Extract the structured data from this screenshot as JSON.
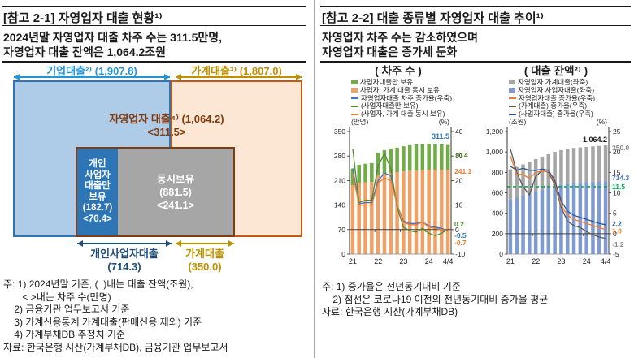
{
  "colors": {
    "corp_fill": "#AECBE8",
    "corp_border": "#2E75B6",
    "corp_accent": "#2596D4",
    "hh_fill": "#FBE7D4",
    "hh_border": "#C55A11",
    "gold": "#BF9000",
    "self_brown": "#843C0C",
    "biz_dark_blue": "#2E75B6",
    "both_gray": "#A6A6A6",
    "navy": "#1F4E79",
    "rule": "#1a1a1a",
    "divider": "#aaaaaa"
  },
  "left_panel": {
    "title": "[참고 2-1] 자영업자 대출 현황¹⁾",
    "subtitle_line1": "2024년말 자영업자 대출 차주 수는 311.5만명,",
    "subtitle_line2": "자영업자 대출 잔액은 1,064.2조원",
    "diagram": {
      "corporate_label": "기업대출²⁾ (1,907.8)",
      "household_label": "가계대출³⁾ (1,807.0)",
      "self_employed_label": "자영업자 대출⁴⁾ (1,064.2)\n<311.5>",
      "only_business_box": "개인\n사업자\n대출만\n보유\n(182.7)\n<70.4>",
      "both_box": "동시보유\n(881.5)\n<241.1>",
      "bottom_business_label": "개인사업자대출\n(714.3)",
      "bottom_household_label": "가계대출\n(350.0)"
    },
    "notes": [
      "주: 1) 2024년말 기준, (  )내는 대출 잔액(조원),",
      "       < >내는 차주 수(만명)",
      "    2) 금융기관 업무보고서 기준",
      "    3) 가계신용통계 가계대출(판매신용 제외) 기준",
      "    4) 가계부채DB 추정치 기준",
      "자료: 한국은행 시산(가계부채DB), 금융기관 업무보고서"
    ]
  },
  "right_panel": {
    "title": "[참고 2-2] 대출 종류별 자영업자 대출 추이¹⁾",
    "subtitle_line1": "자영업자 차주 수는 감소하였으며",
    "subtitle_line2": "자영업자 대출은 증가세 둔화",
    "notes": [
      "주: 1) 증가율은 전년동기대비 기준",
      "    2) 점선은 코로나19 이전의 전년동기대비 증가율 평균",
      "자료: 한국은행 시산(가계부채DB)"
    ]
  },
  "chart_data": [
    {
      "type": "bar",
      "subtype": "stacked bars + growth-rate lines on right axis",
      "title": "( 차주 수 )",
      "unit_left": "(만명)",
      "unit_right": "(%)",
      "categories": [
        "21Q1",
        "21Q2",
        "21Q3",
        "21Q4",
        "22Q1",
        "22Q2",
        "22Q3",
        "22Q4",
        "23Q1",
        "23Q2",
        "23Q3",
        "23Q4",
        "24Q1",
        "24Q2",
        "24Q3",
        "24Q4"
      ],
      "x_ticks": [
        {
          "i": 0,
          "label": "21"
        },
        {
          "i": 4,
          "label": "22"
        },
        {
          "i": 8,
          "label": "23"
        },
        {
          "i": 12,
          "label": "24"
        },
        {
          "i": 15,
          "label": "4/4"
        }
      ],
      "left_axis": {
        "min": 0,
        "max": 350,
        "ticks": [
          {
            "v": 0,
            "label": "0"
          },
          {
            "v": 70,
            "label": "70"
          },
          {
            "v": 140,
            "label": "140"
          },
          {
            "v": 210,
            "label": "210"
          },
          {
            "v": 280,
            "label": "280"
          },
          {
            "v": 350,
            "label": "350"
          }
        ]
      },
      "right_axis": {
        "min": -10,
        "max": 40,
        "ticks": [
          {
            "v": -10,
            "label": "-10"
          },
          {
            "v": 0,
            "label": "0"
          },
          {
            "v": 10,
            "label": "10"
          },
          {
            "v": 20,
            "label": "20"
          },
          {
            "v": 30,
            "label": "30"
          },
          {
            "v": 40,
            "label": "40"
          }
        ]
      },
      "legend": [
        {
          "type": "box",
          "color": "#70AD47",
          "label": "사업자대출만 보유"
        },
        {
          "type": "box",
          "color": "#F0A165",
          "label": "사업자, 가계 대출 동시 보유"
        },
        {
          "type": "line",
          "color": "#4472C4",
          "label": "자영업자대출 차주 증가율(우축)"
        },
        {
          "type": "line",
          "color": "#4E8A2F",
          "label": "(사업자대출만 보유)"
        },
        {
          "type": "line",
          "color": "#ED7D31",
          "label": "(사업자, 가계 대출 동시 보유)"
        }
      ],
      "bars": [
        {
          "name": "사업자, 가계 대출 동시 보유",
          "color": "#F0A165",
          "axis": "left",
          "values": [
            197,
            204,
            205,
            206,
            224,
            229,
            232,
            234,
            236,
            238,
            239,
            240,
            241,
            241,
            241,
            241.1
          ]
        },
        {
          "name": "사업자대출만 보유",
          "color": "#70AD47",
          "axis": "left",
          "values": [
            47,
            51,
            53,
            54,
            66,
            68,
            69,
            70,
            72,
            73,
            74,
            74,
            74,
            73,
            72,
            70.4
          ]
        }
      ],
      "lines": [
        {
          "name": "자영업자대출 차주 증가율(우축)",
          "color": "#4472C4",
          "axis": "right",
          "values": [
            25,
            10.5,
            11,
            11,
            20,
            23,
            22,
            10,
            3.5,
            2.5,
            2.5,
            3,
            1.5,
            1,
            0.5,
            -0.5
          ]
        },
        {
          "name": "(사업자대출만 보유)",
          "color": "#4E8A2F",
          "axis": "right",
          "values": [
            33,
            11,
            12,
            12,
            26,
            31,
            25,
            9,
            1,
            -0.5,
            -1,
            0.5,
            -1.5,
            -2.5,
            -1.5,
            0.2
          ]
        },
        {
          "name": "(사업자, 가계 대출 동시 보유)",
          "color": "#ED7D31",
          "axis": "right",
          "values": [
            23,
            10,
            10,
            10,
            19,
            21,
            20,
            10,
            3,
            2,
            2,
            3,
            1,
            0.5,
            0,
            -0.7
          ]
        }
      ],
      "annotations": [
        {
          "text": "311.5",
          "color": "#2E75B6",
          "axis": "left",
          "value": 336,
          "place": "in",
          "big": true
        },
        {
          "text": "70.4",
          "color": "#4E8A2F",
          "axis": "left",
          "value": 283,
          "place": "out"
        },
        {
          "text": "241.1",
          "color": "#ED7D31",
          "axis": "left",
          "value": 237,
          "place": "out"
        },
        {
          "text": "0.2",
          "color": "#4E8A2F",
          "axis": "right",
          "value": 2.3,
          "place": "out"
        },
        {
          "text": "-0.5",
          "color": "#2E75B6",
          "axis": "right",
          "value": -2.4,
          "place": "out"
        },
        {
          "text": "-0.7",
          "color": "#ED7D31",
          "axis": "right",
          "value": -5.3,
          "place": "out"
        }
      ]
    },
    {
      "type": "bar",
      "subtype": "stacked bars + growth-rate lines on right axis",
      "title": "( 대출 잔액²⁾ )",
      "unit_left": "(조원)",
      "unit_right": "(%)",
      "categories": [
        "21Q1",
        "21Q2",
        "21Q3",
        "21Q4",
        "22Q1",
        "22Q2",
        "22Q3",
        "22Q4",
        "23Q1",
        "23Q2",
        "23Q3",
        "23Q4",
        "24Q1",
        "24Q2",
        "24Q3",
        "24Q4"
      ],
      "x_ticks": [
        {
          "i": 0,
          "label": "21"
        },
        {
          "i": 4,
          "label": "22"
        },
        {
          "i": 8,
          "label": "23"
        },
        {
          "i": 12,
          "label": "24"
        },
        {
          "i": 15,
          "label": "4/4"
        }
      ],
      "left_axis": {
        "min": 0,
        "max": 1200,
        "ticks": [
          {
            "v": 0,
            "label": "0"
          },
          {
            "v": 200,
            "label": "200"
          },
          {
            "v": 400,
            "label": "400"
          },
          {
            "v": 600,
            "label": "600"
          },
          {
            "v": 800,
            "label": "800"
          },
          {
            "v": 1000,
            "label": "1,000"
          },
          {
            "v": 1200,
            "label": "1,200"
          }
        ]
      },
      "right_axis": {
        "min": -5,
        "max": 25,
        "ticks": [
          {
            "v": -5,
            "label": "-5"
          },
          {
            "v": 0,
            "label": "0"
          },
          {
            "v": 5,
            "label": "5"
          },
          {
            "v": 10,
            "label": "10"
          },
          {
            "v": 15,
            "label": "15"
          },
          {
            "v": 20,
            "label": "20"
          },
          {
            "v": 25,
            "label": "25"
          }
        ]
      },
      "legend": [
        {
          "type": "box",
          "color": "#A6A6A6",
          "label": "자영업자 가계대출(좌축)"
        },
        {
          "type": "box",
          "color": "#7F9BD1",
          "label": "자영업자 사업자대출(좌축)"
        },
        {
          "type": "line",
          "color": "#ED7D31",
          "label": "자영업자대출 증가율(우축)"
        },
        {
          "type": "line",
          "color": "#595959",
          "label": "(가계대출) 증가율(우축)"
        },
        {
          "type": "line",
          "color": "#2F5597",
          "label": "(사업자대출) 증가율(우축)"
        }
      ],
      "bars": [
        {
          "name": "자영업자 사업자대출(좌축)",
          "color": "#7F9BD1",
          "axis": "left",
          "values": [
            538,
            556,
            576,
            596,
            618,
            634,
            652,
            668,
            680,
            688,
            695,
            700,
            704,
            708,
            711,
            714.3
          ]
        },
        {
          "name": "자영업자 가계대출(좌축)",
          "color": "#A6A6A6",
          "axis": "left",
          "values": [
            292,
            297,
            302,
            308,
            312,
            318,
            326,
            333,
            338,
            341,
            344,
            345,
            346,
            347,
            348,
            350.0
          ]
        }
      ],
      "lines": [
        {
          "name": "(가계대출) 증가율(우축)",
          "color": "#595959",
          "axis": "right",
          "values": [
            20.8,
            15,
            11.5,
            9.5,
            14,
            15.5,
            15,
            12,
            6.5,
            3,
            2,
            1.5,
            0.5,
            -0.3,
            -0.8,
            -1.2
          ]
        },
        {
          "name": "자영업자대출 증가율(우축)",
          "color": "#ED7D31",
          "axis": "right",
          "values": [
            19,
            14.5,
            14.5,
            13.5,
            15,
            15.3,
            15.2,
            12.5,
            7,
            4.5,
            3.5,
            3,
            2.5,
            2,
            1.5,
            1.0
          ]
        },
        {
          "name": "(사업자대출) 증가율(우축)",
          "color": "#2F5597",
          "axis": "right",
          "values": [
            16.5,
            15.5,
            16,
            15.5,
            15.5,
            15.8,
            15.5,
            13,
            8,
            5.5,
            4.5,
            4,
            3.5,
            3,
            2.5,
            2.2
          ]
        }
      ],
      "dashline": {
        "value": 11.5,
        "color": "#00B050",
        "meaning": "코로나19 이전의 전년동기대비 증가율 평균"
      },
      "annotations": [
        {
          "text": "1,064.2",
          "color": "#1a1a1a",
          "axis": "left",
          "value": 1122,
          "place": "in",
          "big": true
        },
        {
          "text": "350.0",
          "color": "#8a8a8a",
          "axis": "left",
          "value": 1042,
          "place": "out"
        },
        {
          "text": "714.3",
          "color": "#4472C4",
          "axis": "left",
          "value": 748,
          "place": "out"
        },
        {
          "text": "11.5",
          "color": "#00B050",
          "axis": "right",
          "value": 11.5,
          "place": "out"
        },
        {
          "text": "2.2",
          "color": "#2F5597",
          "axis": "right",
          "value": 2.5,
          "place": "out"
        },
        {
          "text": "1.0",
          "color": "#ED7D31",
          "axis": "right",
          "value": 0.7,
          "place": "out"
        },
        {
          "text": "-1.2",
          "color": "#8a8a8a",
          "axis": "right",
          "value": -2.6,
          "place": "out"
        }
      ]
    }
  ]
}
